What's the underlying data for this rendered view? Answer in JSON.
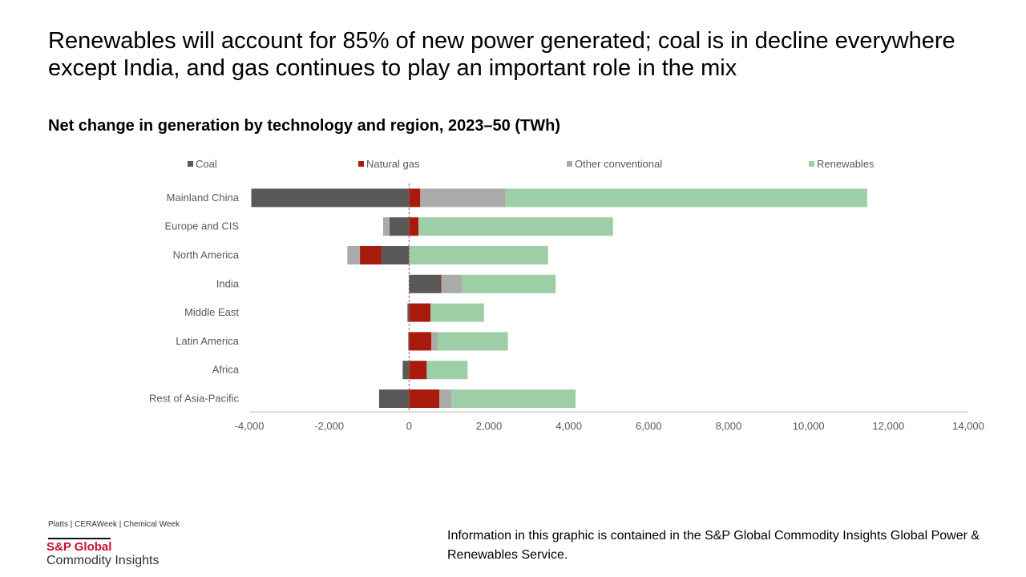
{
  "title": "Renewables will account for 85% of new power generated; coal is in decline everywhere except India, and gas continues to play an important role in the mix",
  "footer": {
    "brands": "Platts | CERAWeek | Chemical Week",
    "logo_line1": "S&P Global",
    "logo_line2": "Commodity Insights",
    "note": "Information in this graphic is contained in the S&P Global Commodity Insights Global Power & Renewables Service."
  },
  "chart_data": {
    "type": "bar",
    "orientation": "horizontal-stacked",
    "title": "Net change in generation by technology and region, 2023–50 (TWh)",
    "categories": [
      "Mainland China",
      "Europe and CIS",
      "North America",
      "India",
      "Middle East",
      "Latin America",
      "Africa",
      "Rest of Asia-Pacific"
    ],
    "series": [
      {
        "name": "Coal",
        "color": "#595959",
        "values": [
          -3950,
          -490,
          -690,
          785,
          -40,
          -20,
          -160,
          -750
        ]
      },
      {
        "name": "Natural gas",
        "color": "#a81a0c",
        "values": [
          280,
          235,
          -540,
          20,
          535,
          560,
          435,
          760
        ]
      },
      {
        "name": "Other conventional",
        "color": "#aaaaaa",
        "values": [
          2130,
          -160,
          -315,
          520,
          0,
          155,
          30,
          300
        ]
      },
      {
        "name": "Renewables",
        "color": "#9dcea6",
        "values": [
          9060,
          4870,
          3480,
          2345,
          1340,
          1760,
          1000,
          3110
        ]
      }
    ],
    "xlim": [
      -4000,
      14000
    ],
    "xticks": [
      "-4,000",
      "-2,000",
      "0",
      "2,000",
      "4,000",
      "6,000",
      "8,000",
      "10,000",
      "12,000",
      "14,000"
    ],
    "xtick_values": [
      -4000,
      -2000,
      0,
      2000,
      4000,
      6000,
      8000,
      10000,
      12000,
      14000
    ],
    "legend": "top",
    "grid": false
  }
}
